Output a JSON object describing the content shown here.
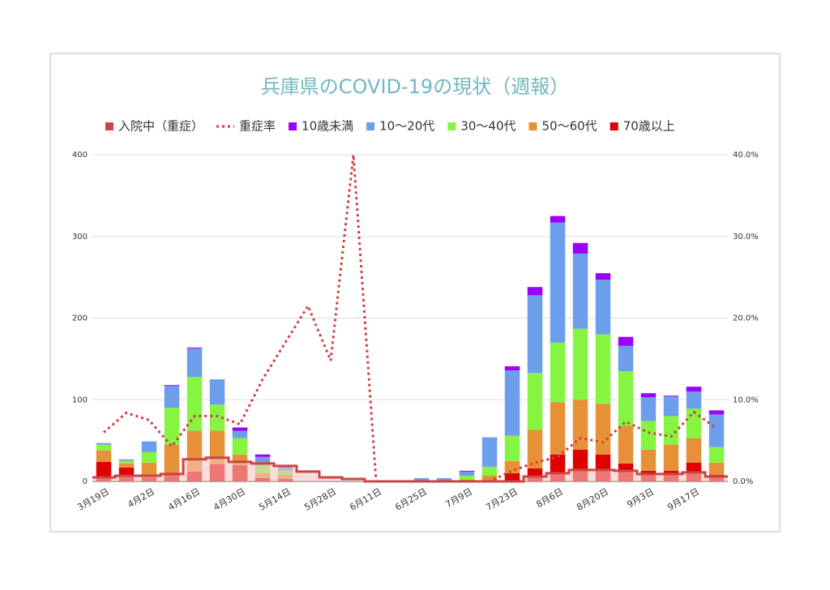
{
  "chart_data": {
    "type": "bar",
    "stacked": true,
    "title": "兵庫県のCOVID-19の現状（週報）",
    "categories": [
      "3月19日",
      null,
      "4月2日",
      null,
      "4月16日",
      null,
      "4月30日",
      null,
      "5月14日",
      null,
      "5月28日",
      null,
      "6月11日",
      null,
      "6月25日",
      null,
      "7月9日",
      null,
      "7月23日",
      null,
      "8月6日",
      null,
      "8月20日",
      null,
      "9月3日",
      null,
      "9月17日",
      null
    ],
    "series": [
      {
        "name": "入院中（重症）",
        "type": "step",
        "color": "#cc4444",
        "fill": "#f4c7c3",
        "values": [
          5,
          7,
          7,
          9,
          27,
          29,
          24,
          22,
          19,
          12,
          5,
          3,
          0,
          0,
          0,
          0,
          0,
          0,
          0,
          6,
          10,
          14,
          14,
          13,
          9,
          9,
          11,
          6
        ]
      },
      {
        "name": "重症率",
        "type": "line",
        "axis": "y2",
        "dashed": true,
        "color": "#d04040",
        "values": [
          6,
          8.4,
          7.5,
          4.3,
          8,
          8,
          7,
          12.5,
          17,
          21.5,
          14.8,
          40,
          0,
          0,
          0,
          0,
          0,
          0,
          1.3,
          2.3,
          3,
          5.3,
          4.8,
          7.3,
          6,
          5.5,
          8.5,
          6.5
        ]
      },
      {
        "name": "10歳未満",
        "type": "bar",
        "color": "#9900ff",
        "values": [
          0,
          0,
          0,
          1,
          1,
          0,
          4,
          3,
          1,
          0,
          0,
          0,
          0,
          0,
          0,
          0,
          1,
          0,
          5,
          10,
          8,
          13,
          8,
          11,
          5,
          1,
          6,
          5
        ]
      },
      {
        "name": "10〜20代",
        "type": "bar",
        "color": "#6d9eeb",
        "values": [
          2,
          2,
          13,
          27,
          35,
          31,
          9,
          10,
          4,
          0,
          0,
          0,
          0,
          0,
          4,
          4,
          5,
          36,
          80,
          95,
          147,
          92,
          67,
          31,
          29,
          24,
          21,
          40
        ]
      },
      {
        "name": "30〜40代",
        "type": "bar",
        "color": "#86f542",
        "values": [
          7,
          3,
          13,
          45,
          66,
          32,
          20,
          10,
          5,
          0,
          0,
          0,
          0,
          0,
          0,
          0,
          5,
          11,
          31,
          70,
          73,
          87,
          85,
          67,
          35,
          35,
          36,
          19
        ]
      },
      {
        "name": "50〜60代",
        "type": "bar",
        "color": "#e69138",
        "values": [
          14,
          5,
          18,
          35,
          50,
          41,
          13,
          6,
          5,
          0,
          0,
          0,
          0,
          0,
          0,
          0,
          2,
          6,
          15,
          47,
          64,
          61,
          62,
          46,
          26,
          32,
          30,
          15
        ]
      },
      {
        "name": "70歳以上",
        "type": "bar",
        "color": "#e00000",
        "values": [
          24,
          17,
          5,
          10,
          12,
          21,
          20,
          4,
          3,
          0,
          0,
          0,
          0,
          0,
          0,
          0,
          0,
          1,
          10,
          16,
          33,
          39,
          33,
          22,
          13,
          13,
          23,
          8
        ]
      }
    ],
    "ylim": [
      0,
      400
    ],
    "yticks": [
      0,
      100,
      200,
      300,
      400
    ],
    "y2lim": [
      0,
      40
    ],
    "y2ticks": [
      {
        "value": 0,
        "label": "0.0%"
      },
      {
        "value": 10,
        "label": "10.0%"
      },
      {
        "value": 20,
        "label": "20.0%"
      },
      {
        "value": 30,
        "label": "30.0%"
      },
      {
        "value": 40,
        "label": "40.0%"
      }
    ],
    "grid": true,
    "legend": "top"
  }
}
